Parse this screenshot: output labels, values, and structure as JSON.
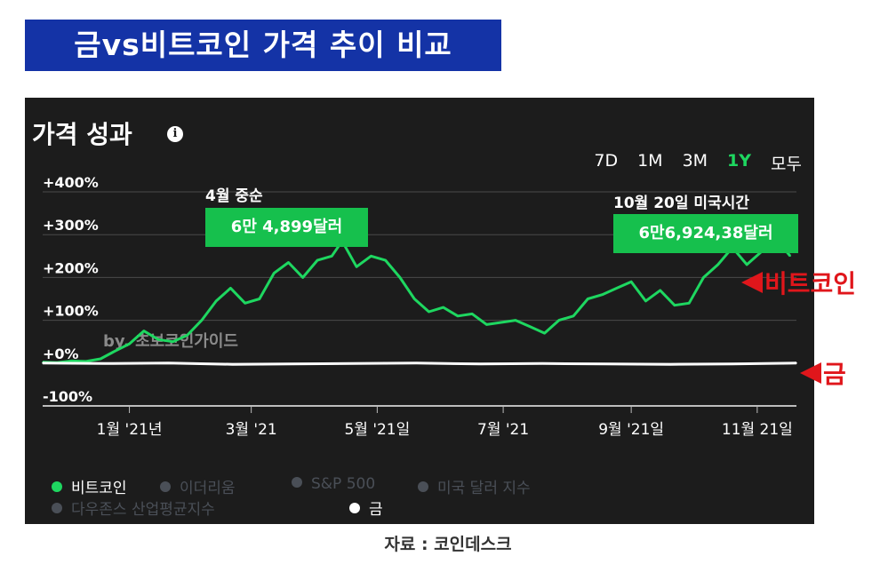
{
  "header": {
    "title": "금vs비트코인 가격 추이 비교"
  },
  "panel": {
    "title": "가격 성과",
    "info_icon": "info-icon"
  },
  "range_tabs": [
    {
      "label": "7D",
      "active": false
    },
    {
      "label": "1M",
      "active": false
    },
    {
      "label": "3M",
      "active": false
    },
    {
      "label": "1Y",
      "active": true
    },
    {
      "label": "모두",
      "active": false
    }
  ],
  "watermark": "by. 초보코인가이드",
  "callouts": {
    "april": {
      "label": "4월 중순",
      "value": "6만 4,899달러"
    },
    "october": {
      "label": "10월 20일 미국시간",
      "value": "6만6,924,38달러"
    }
  },
  "arrows": {
    "bitcoin": "비트코인",
    "gold": "금"
  },
  "legend": [
    {
      "label": "비트코인",
      "color": "#1ed760",
      "active": true
    },
    {
      "label": "이더리움",
      "color": "#4a4f57",
      "active": false
    },
    {
      "label": "S&P 500",
      "color": "#4a4f57",
      "active": false
    },
    {
      "label": "미국 달러 지수",
      "color": "#4a4f57",
      "active": false
    },
    {
      "label": "다우존스 산업평균지수",
      "color": "#4a4f57",
      "active": false
    },
    {
      "label": "금",
      "color": "#ffffff",
      "active": true
    }
  ],
  "source": "자료 : 코인데스크",
  "colors": {
    "bitcoin": "#1ed760",
    "gold": "#ffffff",
    "grid": "#4a4a4a",
    "callout": "#16c04d",
    "arrow": "#e0161b",
    "banner": "#1433a6"
  },
  "chart_data": {
    "type": "line",
    "y_ticks": [
      "+400%",
      "+300%",
      "+200%",
      "+100%",
      "+0%",
      "-100%"
    ],
    "y_tick_values": [
      400,
      300,
      200,
      100,
      0,
      -100
    ],
    "ylim": [
      -100,
      400
    ],
    "x_ticks": [
      {
        "label": "1월 '21년",
        "date": "2021-01-01"
      },
      {
        "label": "3월 '21",
        "date": "2021-03-01"
      },
      {
        "label": "5월 '21일",
        "date": "2021-05-01"
      },
      {
        "label": "7월 '21",
        "date": "2021-07-01"
      },
      {
        "label": "9월 '21일",
        "date": "2021-09-01"
      },
      {
        "label": "11월 21일",
        "date": "2021-11-01"
      }
    ],
    "xlim": [
      "2020-11-20",
      "2021-11-20"
    ],
    "series": [
      {
        "name": "비트코인",
        "color": "#1ed760",
        "points": [
          [
            "2020-11-20",
            2
          ],
          [
            "2020-11-27",
            1
          ],
          [
            "2020-12-04",
            5
          ],
          [
            "2020-12-11",
            4
          ],
          [
            "2020-12-18",
            10
          ],
          [
            "2020-12-25",
            28
          ],
          [
            "2021-01-01",
            45
          ],
          [
            "2021-01-08",
            75
          ],
          [
            "2021-01-15",
            55
          ],
          [
            "2021-01-22",
            50
          ],
          [
            "2021-01-29",
            65
          ],
          [
            "2021-02-05",
            100
          ],
          [
            "2021-02-12",
            145
          ],
          [
            "2021-02-19",
            175
          ],
          [
            "2021-02-26",
            140
          ],
          [
            "2021-03-05",
            150
          ],
          [
            "2021-03-12",
            210
          ],
          [
            "2021-03-19",
            235
          ],
          [
            "2021-03-26",
            200
          ],
          [
            "2021-04-02",
            240
          ],
          [
            "2021-04-09",
            250
          ],
          [
            "2021-04-14",
            285
          ],
          [
            "2021-04-21",
            225
          ],
          [
            "2021-04-28",
            250
          ],
          [
            "2021-05-05",
            240
          ],
          [
            "2021-05-12",
            200
          ],
          [
            "2021-05-19",
            150
          ],
          [
            "2021-05-26",
            120
          ],
          [
            "2021-06-02",
            130
          ],
          [
            "2021-06-09",
            110
          ],
          [
            "2021-06-16",
            115
          ],
          [
            "2021-06-23",
            90
          ],
          [
            "2021-06-30",
            95
          ],
          [
            "2021-07-07",
            100
          ],
          [
            "2021-07-14",
            85
          ],
          [
            "2021-07-21",
            70
          ],
          [
            "2021-07-28",
            100
          ],
          [
            "2021-08-04",
            110
          ],
          [
            "2021-08-11",
            150
          ],
          [
            "2021-08-18",
            160
          ],
          [
            "2021-08-25",
            175
          ],
          [
            "2021-09-01",
            190
          ],
          [
            "2021-09-08",
            145
          ],
          [
            "2021-09-15",
            170
          ],
          [
            "2021-09-22",
            135
          ],
          [
            "2021-09-29",
            140
          ],
          [
            "2021-10-06",
            200
          ],
          [
            "2021-10-13",
            230
          ],
          [
            "2021-10-20",
            270
          ],
          [
            "2021-10-27",
            230
          ],
          [
            "2021-11-03",
            260
          ],
          [
            "2021-11-10",
            290
          ],
          [
            "2021-11-17",
            250
          ]
        ]
      },
      {
        "name": "금",
        "color": "#ffffff",
        "points": [
          [
            "2020-11-20",
            0
          ],
          [
            "2020-12-20",
            -1
          ],
          [
            "2021-01-20",
            0
          ],
          [
            "2021-02-20",
            -3
          ],
          [
            "2021-03-20",
            -2
          ],
          [
            "2021-04-20",
            -1
          ],
          [
            "2021-05-20",
            0
          ],
          [
            "2021-06-20",
            -2
          ],
          [
            "2021-07-20",
            -1
          ],
          [
            "2021-08-20",
            -2
          ],
          [
            "2021-09-20",
            -3
          ],
          [
            "2021-10-20",
            -2
          ],
          [
            "2021-11-20",
            0
          ]
        ]
      }
    ]
  }
}
